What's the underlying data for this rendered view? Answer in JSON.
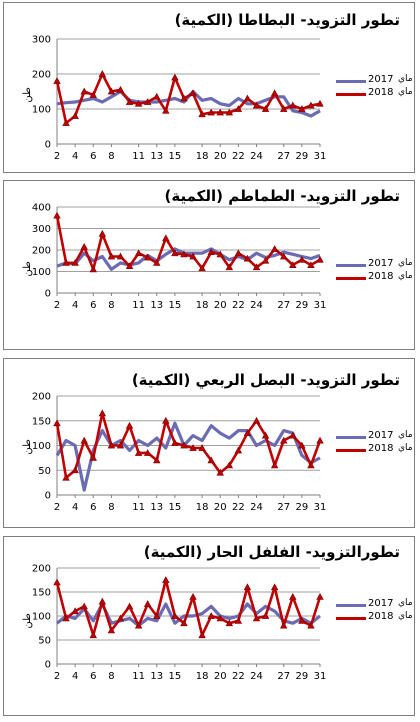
{
  "chart_data": [
    {
      "type": "line",
      "title": "تطور التزويد- البطاطا (الكمية)",
      "ylabel": "طن",
      "ylim": [
        0,
        300
      ],
      "yticks": [
        0,
        100,
        200,
        300
      ],
      "x": [
        2,
        3,
        4,
        5,
        6,
        7,
        8,
        9,
        10,
        11,
        12,
        13,
        14,
        15,
        16,
        17,
        18,
        19,
        20,
        21,
        22,
        23,
        24,
        25,
        26,
        27,
        28,
        29,
        30,
        31
      ],
      "xtick_labels": [
        "2",
        "4",
        "6",
        "8",
        "11",
        "13",
        "15",
        "18",
        "20",
        "22",
        "24",
        "27",
        "29",
        "31"
      ],
      "series": [
        {
          "name": "2017",
          "values": [
            115,
            118,
            120,
            125,
            130,
            120,
            135,
            150,
            125,
            120,
            120,
            120,
            125,
            130,
            120,
            150,
            125,
            130,
            115,
            110,
            130,
            115,
            115,
            125,
            135,
            135,
            95,
            90,
            80,
            95
          ]
        },
        {
          "name": "2018",
          "values": [
            180,
            60,
            80,
            150,
            140,
            200,
            150,
            155,
            120,
            115,
            120,
            135,
            95,
            190,
            130,
            145,
            85,
            90,
            90,
            90,
            100,
            130,
            110,
            100,
            145,
            100,
            110,
            100,
            110,
            115
          ]
        }
      ],
      "legend": "right",
      "legend_prefix": "ماي"
    },
    {
      "type": "line",
      "title": "تطور التزويد- الطماطم (الكمية)",
      "ylabel": "طن",
      "ylim": [
        0,
        400
      ],
      "yticks": [
        0,
        100,
        200,
        300,
        400
      ],
      "x": [
        2,
        3,
        4,
        5,
        6,
        7,
        8,
        9,
        10,
        11,
        12,
        13,
        14,
        15,
        16,
        17,
        18,
        19,
        20,
        21,
        22,
        23,
        24,
        25,
        26,
        27,
        28,
        29,
        30,
        31
      ],
      "xtick_labels": [
        "2",
        "4",
        "6",
        "8",
        "11",
        "13",
        "15",
        "18",
        "20",
        "22",
        "24",
        "27",
        "29",
        "31"
      ],
      "series": [
        {
          "name": "2017",
          "values": [
            125,
            140,
            135,
            185,
            150,
            170,
            110,
            140,
            130,
            140,
            175,
            150,
            180,
            205,
            185,
            185,
            185,
            205,
            180,
            155,
            170,
            155,
            185,
            165,
            175,
            190,
            180,
            170,
            160,
            175
          ]
        },
        {
          "name": "2018",
          "values": [
            360,
            140,
            140,
            215,
            110,
            275,
            170,
            170,
            125,
            185,
            165,
            140,
            255,
            185,
            180,
            170,
            115,
            190,
            180,
            120,
            185,
            160,
            120,
            150,
            205,
            170,
            130,
            155,
            130,
            155
          ]
        }
      ],
      "legend": "right",
      "legend_prefix": "ماي"
    },
    {
      "type": "line",
      "title": "تطور التزويد- البصل الربعي (الكمية)",
      "ylabel": "طن",
      "ylim": [
        0,
        200
      ],
      "yticks": [
        0,
        50,
        100,
        150,
        200
      ],
      "x": [
        2,
        3,
        4,
        5,
        6,
        7,
        8,
        9,
        10,
        11,
        12,
        13,
        14,
        15,
        16,
        17,
        18,
        19,
        20,
        21,
        22,
        23,
        24,
        25,
        26,
        27,
        28,
        29,
        30,
        31
      ],
      "xtick_labels": [
        "2",
        "4",
        "6",
        "8",
        "11",
        "13",
        "15",
        "18",
        "20",
        "22",
        "24",
        "27",
        "29",
        "31"
      ],
      "series": [
        {
          "name": "2017",
          "values": [
            80,
            110,
            100,
            10,
            90,
            130,
            100,
            110,
            90,
            110,
            100,
            115,
            95,
            145,
            100,
            120,
            110,
            140,
            125,
            115,
            130,
            130,
            100,
            110,
            100,
            130,
            125,
            80,
            65,
            75
          ]
        },
        {
          "name": "2018",
          "values": [
            145,
            35,
            50,
            110,
            75,
            165,
            100,
            100,
            140,
            85,
            85,
            70,
            150,
            105,
            100,
            95,
            95,
            70,
            45,
            60,
            90,
            125,
            150,
            120,
            60,
            110,
            120,
            100,
            60,
            110
          ]
        }
      ],
      "legend": "right",
      "legend_prefix": "ماي"
    },
    {
      "type": "line",
      "title": "تطورالتزويد- الفلفل الحار (الكمية)",
      "ylabel": "طن",
      "ylim": [
        0,
        200
      ],
      "yticks": [
        0,
        50,
        100,
        150,
        200
      ],
      "x": [
        2,
        3,
        4,
        5,
        6,
        7,
        8,
        9,
        10,
        11,
        12,
        13,
        14,
        15,
        16,
        17,
        18,
        19,
        20,
        21,
        22,
        23,
        24,
        25,
        26,
        27,
        28,
        29,
        30,
        31
      ],
      "xtick_labels": [
        "2",
        "4",
        "6",
        "8",
        "11",
        "13",
        "15",
        "18",
        "20",
        "22",
        "24",
        "27",
        "29",
        "31"
      ],
      "series": [
        {
          "name": "2017",
          "values": [
            85,
            100,
            95,
            115,
            90,
            125,
            85,
            90,
            95,
            80,
            95,
            90,
            125,
            85,
            100,
            100,
            105,
            120,
            100,
            95,
            100,
            125,
            105,
            120,
            110,
            90,
            85,
            95,
            85,
            100
          ]
        },
        {
          "name": "2018",
          "values": [
            170,
            95,
            110,
            120,
            60,
            130,
            70,
            95,
            120,
            80,
            125,
            100,
            175,
            100,
            85,
            140,
            60,
            100,
            95,
            85,
            90,
            160,
            95,
            100,
            160,
            80,
            140,
            90,
            80,
            140
          ]
        }
      ],
      "legend": "right",
      "legend_prefix": "ماي"
    }
  ],
  "colors": {
    "series_2017": "#6b6bb3",
    "series_2018": "#c00000",
    "marker_2018": "#c00000",
    "grid": "#a0a0a0"
  }
}
